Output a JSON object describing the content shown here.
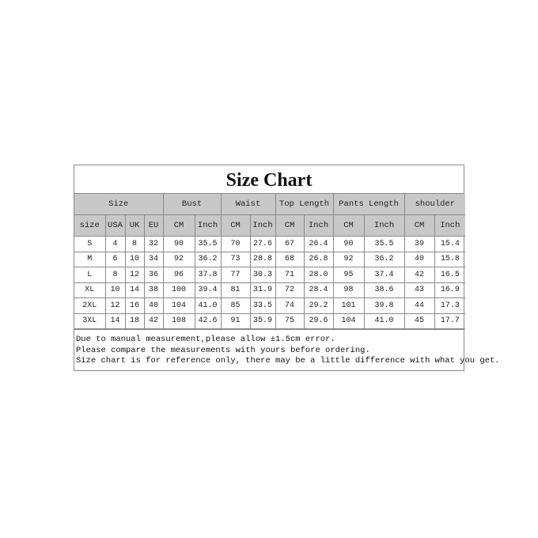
{
  "title": "Size Chart",
  "groups": [
    "Size",
    "Bust",
    "Waist",
    "Top Length",
    "Pants Length",
    "shoulder"
  ],
  "subheaders": [
    "size",
    "USA",
    "UK",
    "EU",
    "CM",
    "Inch",
    "CM",
    "Inch",
    "CM",
    "Inch",
    "CM",
    "Inch",
    "CM",
    "Inch"
  ],
  "rows": [
    [
      "S",
      "4",
      "8",
      "32",
      "90",
      "35.5",
      "70",
      "27.6",
      "67",
      "26.4",
      "90",
      "35.5",
      "39",
      "15.4"
    ],
    [
      "M",
      "6",
      "10",
      "34",
      "92",
      "36.2",
      "73",
      "28.8",
      "68",
      "26.8",
      "92",
      "36.2",
      "40",
      "15.8"
    ],
    [
      "L",
      "8",
      "12",
      "36",
      "96",
      "37.8",
      "77",
      "30.3",
      "71",
      "28.0",
      "95",
      "37.4",
      "42",
      "16.5"
    ],
    [
      "XL",
      "10",
      "14",
      "38",
      "100",
      "39.4",
      "81",
      "31.9",
      "72",
      "28.4",
      "98",
      "38.6",
      "43",
      "16.9"
    ],
    [
      "2XL",
      "12",
      "16",
      "40",
      "104",
      "41.0",
      "85",
      "33.5",
      "74",
      "29.2",
      "101",
      "39.8",
      "44",
      "17.3"
    ],
    [
      "3XL",
      "14",
      "18",
      "42",
      "108",
      "42.6",
      "91",
      "35.9",
      "75",
      "29.6",
      "104",
      "41.0",
      "45",
      "17.7"
    ]
  ],
  "notes": [
    "Due to manual measurement,please allow ±1.5cm error.",
    "Please compare the measurements with yours before ordering.",
    "Size chart is for reference only, there may be a little difference with what you get."
  ]
}
